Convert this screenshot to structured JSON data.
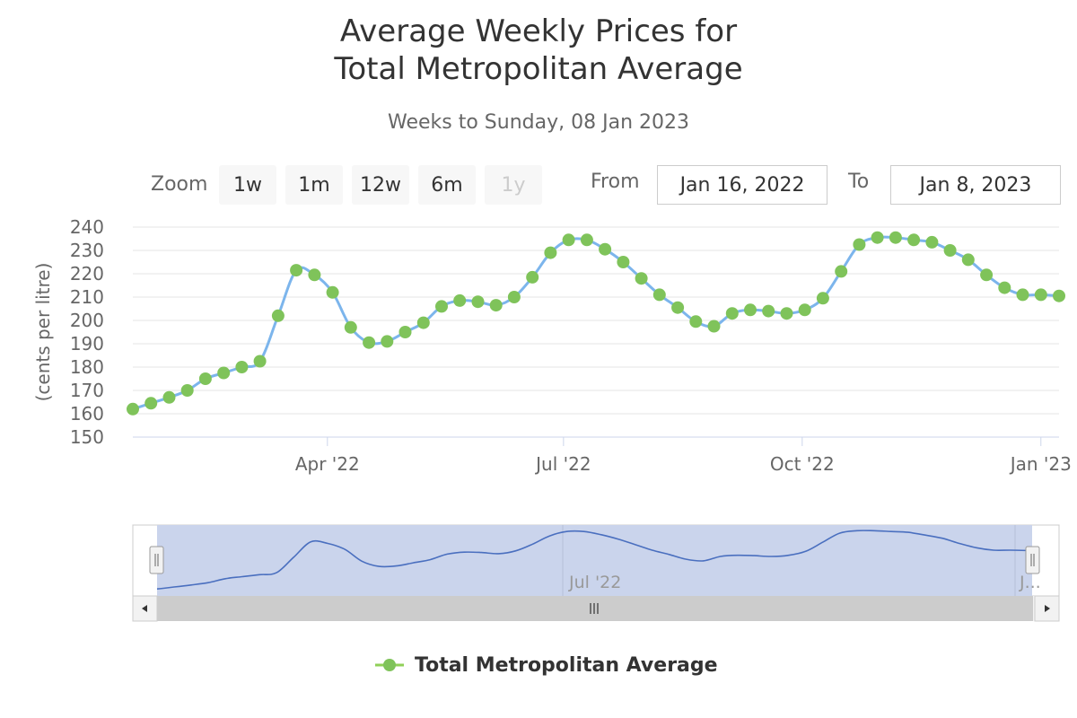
{
  "colors": {
    "line": "#7cb5ec",
    "marker": "#90d058",
    "markerFill": "#7fc35a",
    "grid": "#e6e6e6",
    "navigatorMask": "#cad4ec",
    "navigatorLine": "#4a6fbf",
    "scrollbar": "#cccccc"
  },
  "range_selector": {
    "zoom_label": "Zoom",
    "buttons": [
      "1w",
      "1m",
      "12w",
      "6m",
      "1y"
    ],
    "active_button": "1y",
    "from_label": "From",
    "from_value": "Jan 16, 2022",
    "to_label": "To",
    "to_value": "Jan 8, 2023"
  },
  "navigator": {
    "tick_labels": [
      "Jul '22",
      "J..."
    ],
    "handle_icon": "grip-icon",
    "scroll_left_icon": "arrow-left-icon",
    "scroll_right_icon": "arrow-right-icon",
    "scroll_grip_icon": "scroll-grip-icon"
  },
  "chart_data": {
    "type": "line",
    "title": "Average Weekly Prices for",
    "title_line2": "Total Metropolitan Average",
    "subtitle": "Weeks to Sunday, 08 Jan 2023",
    "ylabel": "(cents per litre)",
    "ylim": [
      150,
      240
    ],
    "yticks": [
      150,
      160,
      170,
      180,
      190,
      200,
      210,
      220,
      230,
      240
    ],
    "xlim": [
      "2022-01-16",
      "2023-01-08"
    ],
    "xticks": [
      {
        "label": "Apr '22",
        "date": "2022-04-01"
      },
      {
        "label": "Jul '22",
        "date": "2022-07-01"
      },
      {
        "label": "Oct '22",
        "date": "2022-10-01"
      },
      {
        "label": "Jan '23",
        "date": "2023-01-01"
      }
    ],
    "grid": true,
    "legend_position": "bottom",
    "series": [
      {
        "name": "Total Metropolitan Average",
        "x": [
          "2022-01-16",
          "2022-01-23",
          "2022-01-30",
          "2022-02-06",
          "2022-02-13",
          "2022-02-20",
          "2022-02-27",
          "2022-03-06",
          "2022-03-13",
          "2022-03-20",
          "2022-03-27",
          "2022-04-03",
          "2022-04-10",
          "2022-04-17",
          "2022-04-24",
          "2022-05-01",
          "2022-05-08",
          "2022-05-15",
          "2022-05-22",
          "2022-05-29",
          "2022-06-05",
          "2022-06-12",
          "2022-06-19",
          "2022-06-26",
          "2022-07-03",
          "2022-07-10",
          "2022-07-17",
          "2022-07-24",
          "2022-07-31",
          "2022-08-07",
          "2022-08-14",
          "2022-08-21",
          "2022-08-28",
          "2022-09-04",
          "2022-09-11",
          "2022-09-18",
          "2022-09-25",
          "2022-10-02",
          "2022-10-09",
          "2022-10-16",
          "2022-10-23",
          "2022-10-30",
          "2022-11-06",
          "2022-11-13",
          "2022-11-20",
          "2022-11-27",
          "2022-12-04",
          "2022-12-11",
          "2022-12-18",
          "2022-12-25",
          "2023-01-01",
          "2023-01-08"
        ],
        "values": [
          162,
          164.5,
          167,
          170,
          175,
          177.5,
          180,
          182.5,
          202,
          221.5,
          219.5,
          212,
          197,
          190.5,
          191,
          195,
          199,
          206,
          208.5,
          208,
          206.5,
          210,
          218.5,
          229,
          234.5,
          234.5,
          230.5,
          225,
          218,
          211,
          205.5,
          199.5,
          197.5,
          203,
          204.5,
          204,
          203,
          204.5,
          209.5,
          221,
          232.5,
          235.5,
          235.5,
          234.5,
          233.5,
          230,
          226,
          219.5,
          214,
          211,
          211,
          210.5
        ]
      }
    ]
  }
}
